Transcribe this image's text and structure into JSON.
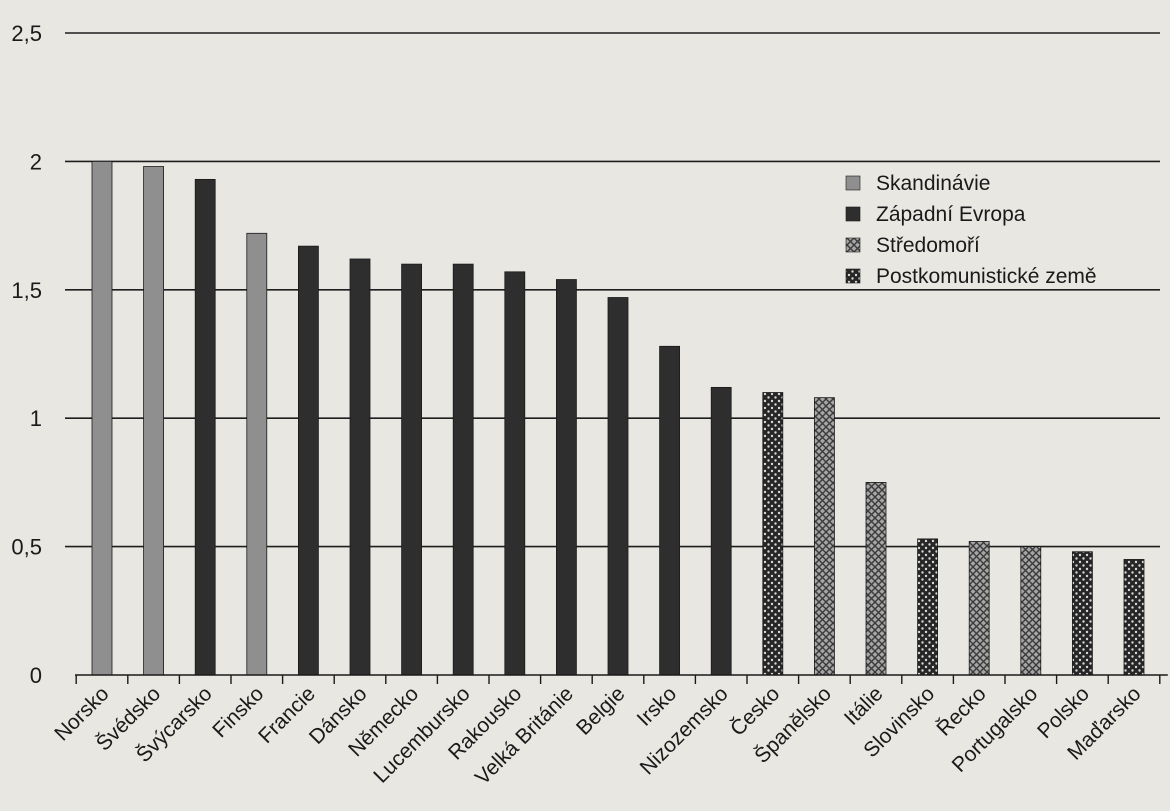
{
  "chart_data": {
    "type": "bar",
    "title": "",
    "xlabel": "",
    "ylabel": "",
    "ylim": [
      0,
      2.5
    ],
    "yticks": [
      0,
      0.5,
      1,
      1.5,
      2,
      2.5
    ],
    "ytick_labels": [
      "0",
      "0,5",
      "1",
      "1,5",
      "2",
      "2,5"
    ],
    "grid": "horizontal",
    "legend_position": "top-right",
    "groups": [
      {
        "name": "Skandinávie",
        "color": "#8f8f8f",
        "pattern": "solid"
      },
      {
        "name": "Západní Evropa",
        "color": "#2e2e2e",
        "pattern": "solid"
      },
      {
        "name": "Středomoří",
        "color": "#9a9a9a",
        "pattern": "crosshatch"
      },
      {
        "name": "Postkomunistické země",
        "color": "#2a2a2a",
        "pattern": "dots"
      }
    ],
    "bars": [
      {
        "category": "Norsko",
        "value": 2.0,
        "group": 0
      },
      {
        "category": "Švédsko",
        "value": 1.98,
        "group": 0
      },
      {
        "category": "Švýcarsko",
        "value": 1.93,
        "group": 1
      },
      {
        "category": "Finsko",
        "value": 1.72,
        "group": 0
      },
      {
        "category": "Francie",
        "value": 1.67,
        "group": 1
      },
      {
        "category": "Dánsko",
        "value": 1.62,
        "group": 1
      },
      {
        "category": "Německo",
        "value": 1.6,
        "group": 1
      },
      {
        "category": "Lucembursko",
        "value": 1.6,
        "group": 1
      },
      {
        "category": "Rakousko",
        "value": 1.57,
        "group": 1
      },
      {
        "category": "Velká Británie",
        "value": 1.54,
        "group": 1
      },
      {
        "category": "Belgie",
        "value": 1.47,
        "group": 1
      },
      {
        "category": "Irsko",
        "value": 1.28,
        "group": 1
      },
      {
        "category": "Nizozemsko",
        "value": 1.12,
        "group": 1
      },
      {
        "category": "Česko",
        "value": 1.1,
        "group": 3
      },
      {
        "category": "Španělsko",
        "value": 1.08,
        "group": 2
      },
      {
        "category": "Itálie",
        "value": 0.75,
        "group": 2
      },
      {
        "category": "Slovinsko",
        "value": 0.53,
        "group": 3
      },
      {
        "category": "Řecko",
        "value": 0.52,
        "group": 2
      },
      {
        "category": "Portugalsko",
        "value": 0.5,
        "group": 2
      },
      {
        "category": "Polsko",
        "value": 0.48,
        "group": 3
      },
      {
        "category": "Maďarsko",
        "value": 0.45,
        "group": 3
      }
    ]
  }
}
